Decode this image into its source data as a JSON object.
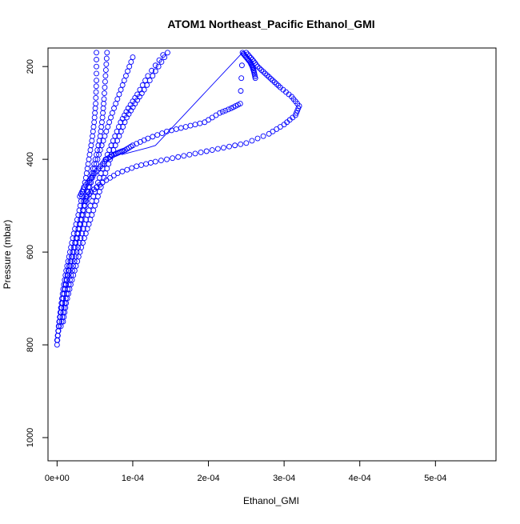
{
  "chart_data": {
    "type": "scatter",
    "title": "ATOM1 Northeast_Pacific Ethanol_GMI",
    "xlabel": "Ethanol_GMI",
    "ylabel": "Pressure (mbar)",
    "xlim": [
      -1.2e-05,
      0.00058
    ],
    "ylim": [
      1050,
      160
    ],
    "y_reversed": true,
    "x_ticks": [
      {
        "value": 0.0,
        "label": "0e+00"
      },
      {
        "value": 0.0001,
        "label": "1e-04"
      },
      {
        "value": 0.0002,
        "label": "2e-04"
      },
      {
        "value": 0.0003,
        "label": "3e-04"
      },
      {
        "value": 0.0004,
        "label": "4e-04"
      },
      {
        "value": 0.0005,
        "label": "5e-04"
      }
    ],
    "y_ticks": [
      {
        "value": 200,
        "label": "200"
      },
      {
        "value": 400,
        "label": "400"
      },
      {
        "value": 600,
        "label": "600"
      },
      {
        "value": 800,
        "label": "800"
      },
      {
        "value": 1000,
        "label": "1000"
      }
    ],
    "marker_color": "#0000ff",
    "line_color": "#0000ff",
    "grid": false,
    "legend": "none",
    "series": [
      {
        "x": [
          0.0,
          2e-06,
          5e-06,
          8e-06,
          1.2e-05,
          1.7e-05,
          2.2e-05,
          2.8e-05,
          3.3e-05,
          3.8e-05,
          4.2e-05,
          4.6e-05,
          4.9e-05,
          5.1e-05,
          5.2e-05,
          5.2e-05
        ],
        "y": [
          800,
          760,
          720,
          680,
          640,
          600,
          560,
          520,
          480,
          440,
          400,
          360,
          320,
          280,
          230,
          170
        ]
      },
      {
        "x": [
          0.0,
          3e-06,
          7e-06,
          1.1e-05,
          1.6e-05,
          2.2e-05,
          2.8e-05,
          3.4e-05,
          4e-05,
          4.6e-05,
          5.2e-05,
          5.7e-05,
          6e-05,
          6.2e-05,
          6.4e-05,
          6.6e-05
        ],
        "y": [
          790,
          750,
          710,
          670,
          630,
          590,
          550,
          510,
          470,
          430,
          390,
          350,
          310,
          270,
          220,
          170
        ]
      },
      {
        "x": [
          1e-06,
          4e-06,
          8e-06,
          1.3e-05,
          1.9e-05,
          2.5e-05,
          3.1e-05,
          3.7e-05,
          4.3e-05,
          5e-05,
          5.7e-05,
          6.5e-05,
          7.3e-05,
          8.2e-05,
          9.1e-05,
          0.0001
        ],
        "y": [
          780,
          740,
          700,
          660,
          620,
          580,
          540,
          500,
          460,
          420,
          380,
          340,
          300,
          260,
          220,
          180
        ]
      },
      {
        "x": [
          5e-06,
          9e-06,
          1.4e-05,
          2e-05,
          2.6e-05,
          3.3e-05,
          4e-05,
          4.8e-05,
          5.6e-05,
          6.4e-05,
          7.4e-05,
          8.4e-05,
          9.4e-05,
          0.000106,
          0.00012,
          0.00014
        ],
        "y": [
          760,
          720,
          680,
          640,
          600,
          560,
          520,
          480,
          440,
          400,
          360,
          320,
          290,
          260,
          220,
          175
        ]
      },
      {
        "x": [
          8e-06,
          1.2e-05,
          1.8e-05,
          2.5e-05,
          3.2e-05,
          4e-05,
          4.8e-05,
          5.6e-05,
          6.4e-05,
          7.2e-05,
          8.2e-05,
          9.2e-05,
          0.000103,
          0.000115,
          0.00013,
          0.000146
        ],
        "y": [
          750,
          710,
          670,
          630,
          590,
          550,
          510,
          470,
          430,
          390,
          350,
          310,
          280,
          250,
          210,
          170
        ]
      },
      {
        "x": [
          3e-05,
          3.6e-05,
          4.5e-05,
          5.5e-05,
          6.5e-05,
          7.5e-05,
          8.2e-05,
          9e-05,
          0.0001,
          0.00012,
          0.000145,
          0.00017,
          0.000195,
          0.000215,
          0.00023,
          0.000242,
          0.000245,
          0.00025,
          0.000255,
          0.000258,
          0.00026,
          0.000262
        ],
        "y": [
          480,
          460,
          440,
          420,
          400,
          390,
          385,
          380,
          370,
          355,
          340,
          330,
          320,
          300,
          290,
          280,
          170,
          180,
          190,
          200,
          210,
          225
        ]
      },
      {
        "x": [
          3.5e-05,
          4.5e-05,
          6e-05,
          8e-05,
          0.000105,
          0.00013,
          0.00016,
          0.00019,
          0.00022,
          0.00025,
          0.00028,
          0.0003,
          0.000315,
          0.00032,
          0.00031,
          0.000295,
          0.000285,
          0.000275,
          0.000265,
          0.000258,
          0.00025
        ],
        "y": [
          490,
          470,
          450,
          430,
          415,
          405,
          395,
          385,
          375,
          365,
          345,
          325,
          305,
          285,
          265,
          245,
          230,
          215,
          200,
          185,
          170
        ]
      }
    ],
    "connector_lines": [
      {
        "x": [
          8.5e-05,
          0.00012,
          0.00013,
          0.000245
        ],
        "y": [
          390,
          375,
          370,
          170
        ]
      }
    ]
  }
}
